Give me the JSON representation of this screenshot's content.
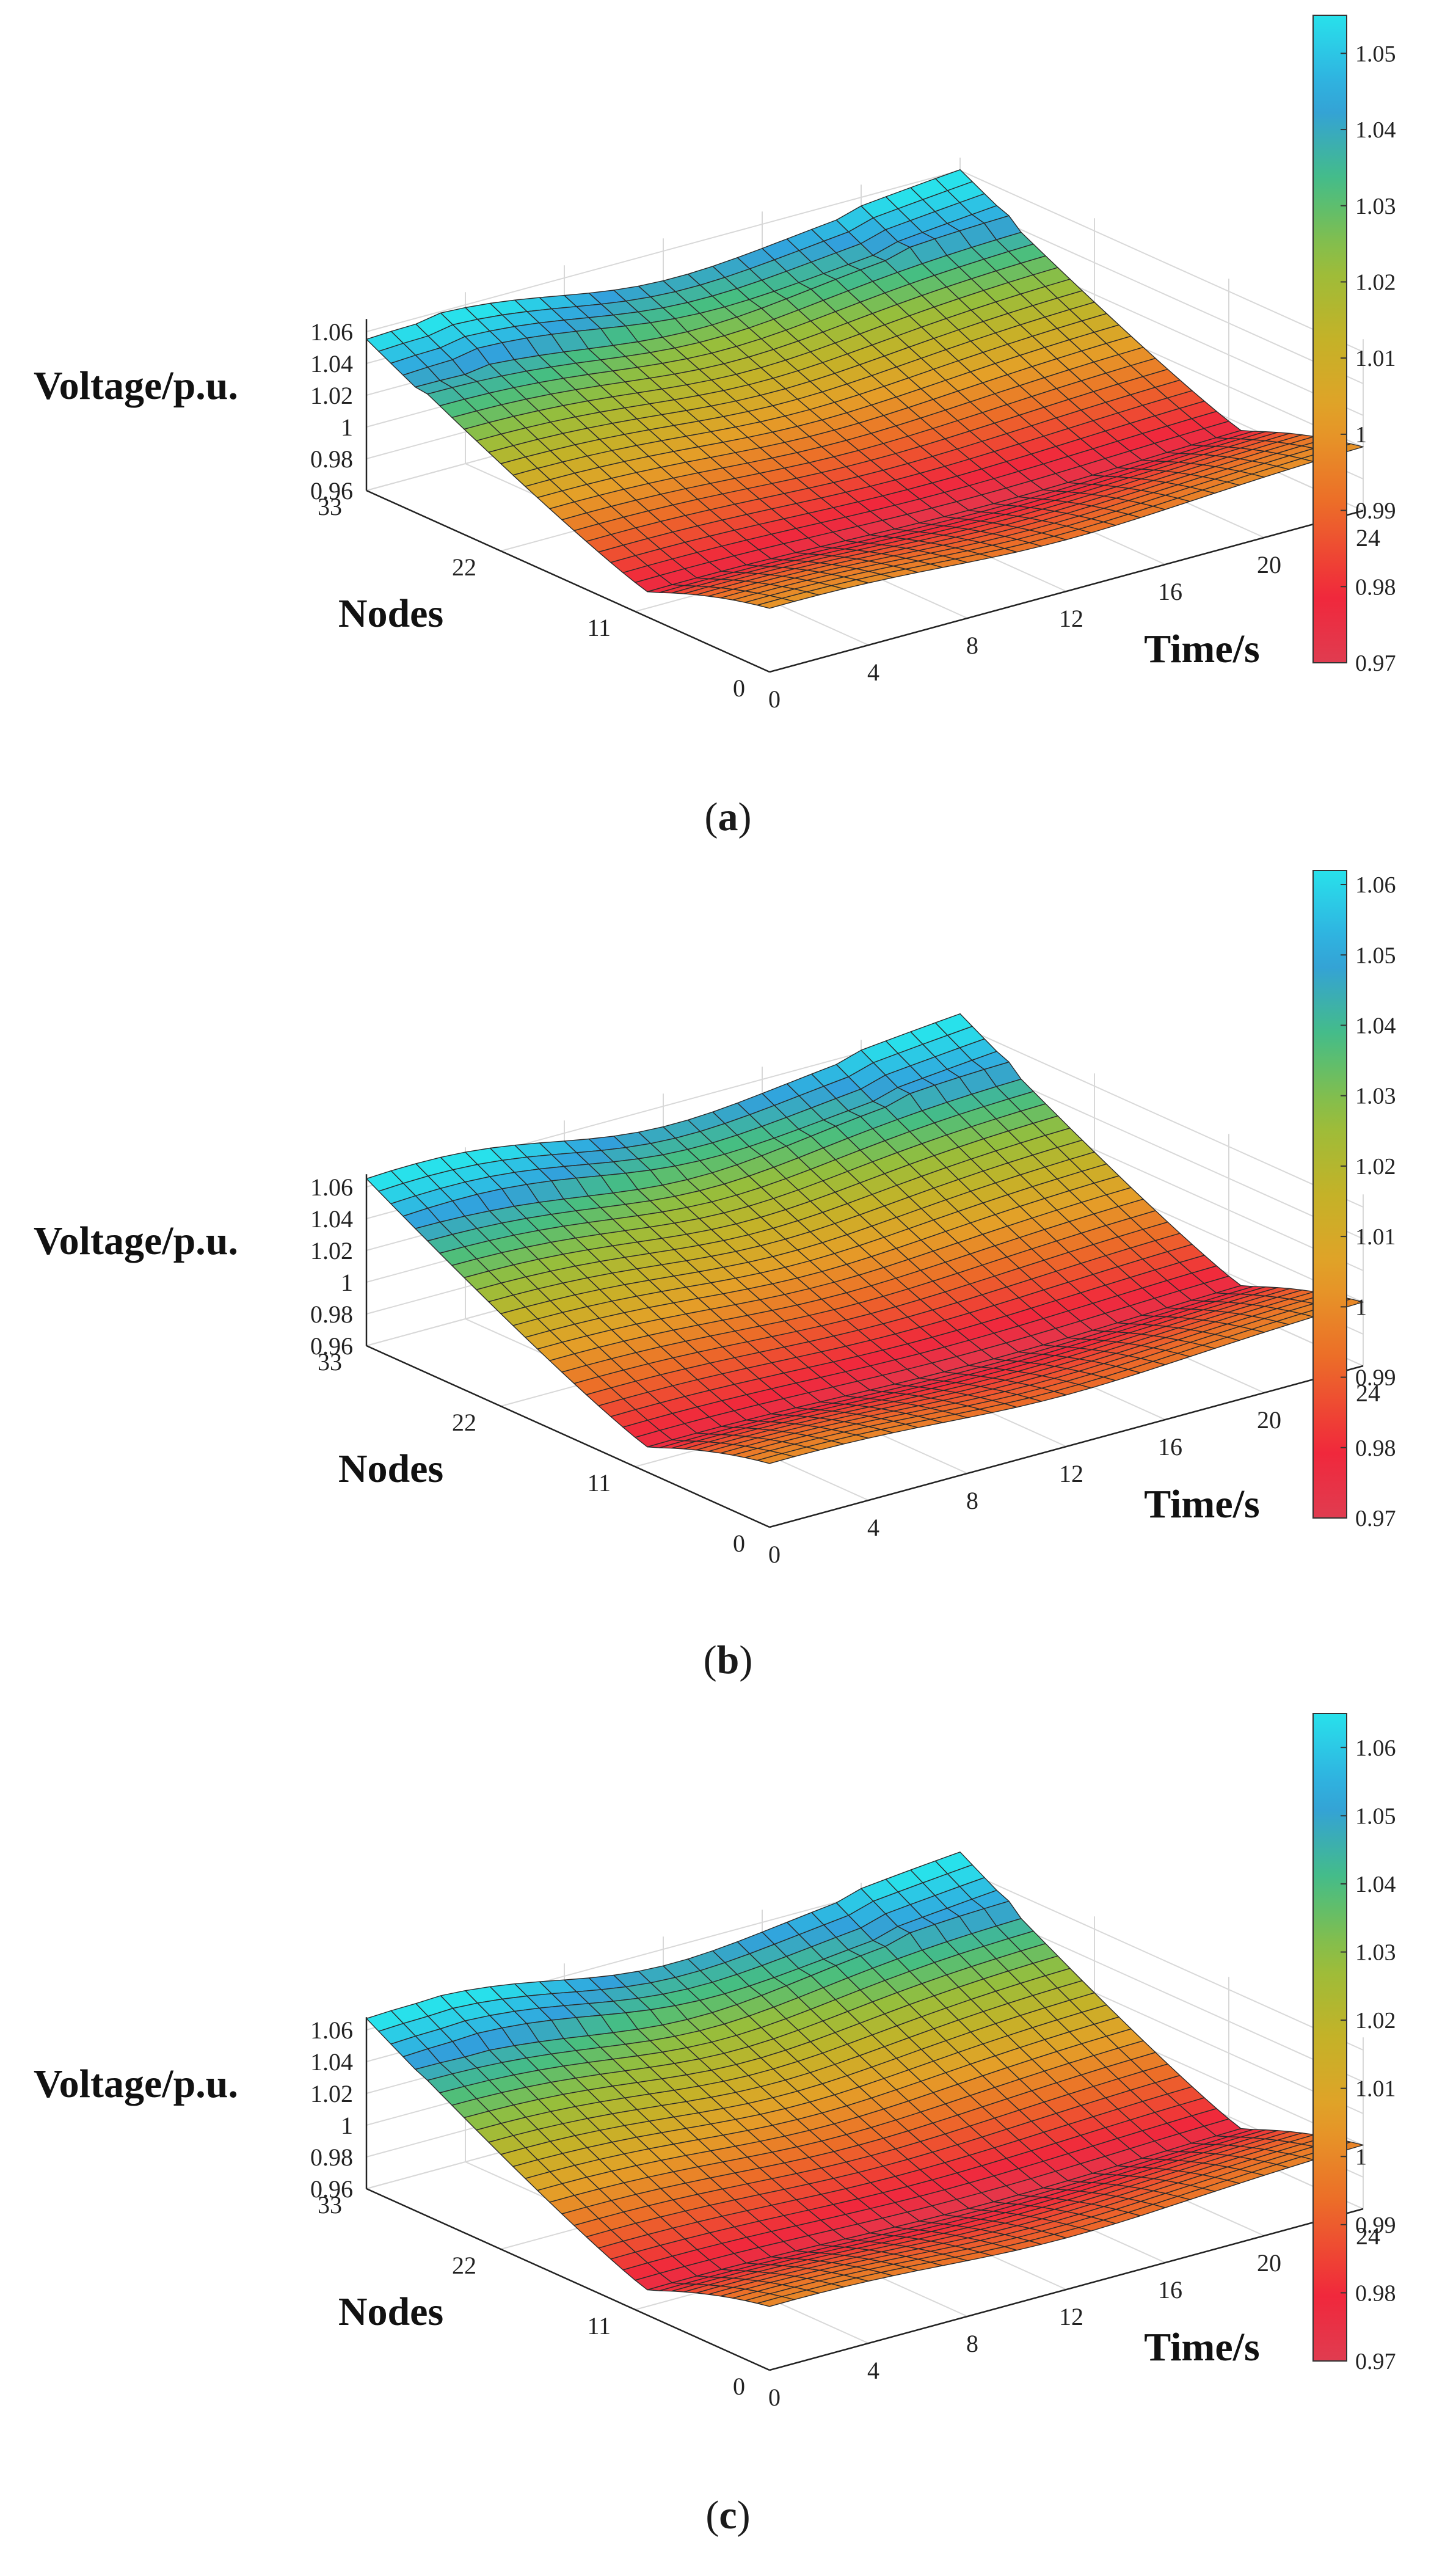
{
  "chart_data": [
    {
      "type": "surface3d",
      "panel": "a",
      "caption_letter": "a",
      "zlabel": "Voltage/p.u.",
      "xlabel": "Time/s",
      "ylabel": "Nodes",
      "time_ticks": [
        "0",
        "4",
        "8",
        "12",
        "16",
        "20",
        "24"
      ],
      "node_ticks": [
        "0",
        "11",
        "22",
        "33"
      ],
      "voltage_ticks": [
        "0.96",
        "0.98",
        "1",
        "1.02",
        "1.04",
        "1.06"
      ],
      "time_range": [
        0,
        24
      ],
      "node_range": [
        0,
        33
      ],
      "voltage_range": [
        0.96,
        1.06
      ],
      "colorbar_ticks": [
        "0.97",
        "0.98",
        "0.99",
        "1",
        "1.01",
        "1.02",
        "1.03",
        "1.04",
        "1.05"
      ],
      "colorbar_range": [
        0.97,
        1.055
      ],
      "peak_voltage": 1.055,
      "min_voltage": 0.972,
      "source_peak_end": 1.055,
      "source_peak_start": 1.05,
      "colormap": "parula-like red-orange-green-cyan"
    },
    {
      "type": "surface3d",
      "panel": "b",
      "caption_letter": "b",
      "zlabel": "Voltage/p.u.",
      "xlabel": "Time/s",
      "ylabel": "Nodes",
      "time_ticks": [
        "0",
        "4",
        "8",
        "12",
        "16",
        "20",
        "24"
      ],
      "node_ticks": [
        "0",
        "11",
        "22",
        "33"
      ],
      "voltage_ticks": [
        "0.96",
        "0.98",
        "1",
        "1.02",
        "1.04",
        "1.06"
      ],
      "time_range": [
        0,
        24
      ],
      "node_range": [
        0,
        33
      ],
      "voltage_range": [
        0.96,
        1.06
      ],
      "colorbar_ticks": [
        "0.97",
        "0.98",
        "0.99",
        "1",
        "1.01",
        "1.02",
        "1.03",
        "1.04",
        "1.05",
        "1.06"
      ],
      "colorbar_range": [
        0.97,
        1.062
      ],
      "peak_voltage": 1.062,
      "min_voltage": 0.972,
      "source_peak_end": 1.062,
      "source_peak_start": 1.06,
      "colormap": "parula-like red-orange-green-cyan"
    },
    {
      "type": "surface3d",
      "panel": "c",
      "caption_letter": "c",
      "zlabel": "Voltage/p.u.",
      "xlabel": "Time/s",
      "ylabel": "Nodes",
      "time_ticks": [
        "0",
        "4",
        "8",
        "12",
        "16",
        "20",
        "24"
      ],
      "node_ticks": [
        "0",
        "11",
        "22",
        "33"
      ],
      "voltage_ticks": [
        "0.96",
        "0.98",
        "1",
        "1.02",
        "1.04",
        "1.06"
      ],
      "time_range": [
        0,
        24
      ],
      "node_range": [
        0,
        33
      ],
      "voltage_range": [
        0.96,
        1.06
      ],
      "colorbar_ticks": [
        "0.97",
        "0.98",
        "0.99",
        "1",
        "1.01",
        "1.02",
        "1.03",
        "1.04",
        "1.05",
        "1.06"
      ],
      "colorbar_range": [
        0.97,
        1.065
      ],
      "peak_voltage": 1.065,
      "min_voltage": 0.972,
      "source_peak_end": 1.065,
      "source_peak_start": 1.062,
      "colormap": "parula-like red-orange-green-cyan"
    }
  ]
}
